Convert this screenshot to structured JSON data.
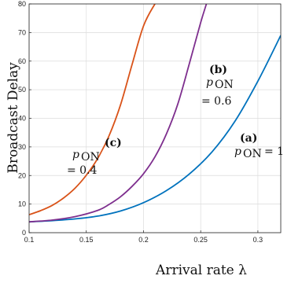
{
  "chart_data": {
    "type": "line",
    "xlabel": "Arrival rate λ",
    "ylabel": "Broadcast Delay",
    "xlim": [
      0.1,
      0.32
    ],
    "ylim": [
      0,
      80
    ],
    "xticks": [
      0.1,
      0.15,
      0.2,
      0.25,
      0.3
    ],
    "xtick_labels": [
      "0.1",
      "0.15",
      "0.2",
      "0.25",
      "0.3"
    ],
    "yticks": [
      0,
      10,
      20,
      30,
      40,
      50,
      60,
      70,
      80
    ],
    "ytick_labels": [
      "0",
      "10",
      "20",
      "30",
      "40",
      "50",
      "60",
      "70",
      "80"
    ],
    "grid": true,
    "series": [
      {
        "name": "(a) p_ON = 1",
        "color": "#0072BD",
        "x": [
          0.1,
          0.12,
          0.14,
          0.16,
          0.18,
          0.2,
          0.22,
          0.24,
          0.26,
          0.28,
          0.3,
          0.32
        ],
        "y": [
          3.8,
          4.2,
          4.8,
          5.8,
          7.6,
          10.5,
          14.7,
          20.5,
          28.3,
          39.0,
          53.0,
          69.0
        ]
      },
      {
        "name": "(b) p_ON = 0.6",
        "color": "#7E2F8E",
        "x": [
          0.1,
          0.12,
          0.14,
          0.16,
          0.17,
          0.18,
          0.19,
          0.2,
          0.21,
          0.22,
          0.23,
          0.24,
          0.25,
          0.255
        ],
        "y": [
          3.8,
          4.4,
          5.6,
          7.8,
          9.9,
          12.6,
          16.2,
          20.6,
          26.5,
          34.5,
          45.0,
          59.0,
          73.5,
          80.0
        ]
      },
      {
        "name": "(c) p_ON = 0.4",
        "color": "#D95319",
        "x": [
          0.1,
          0.11,
          0.12,
          0.13,
          0.14,
          0.15,
          0.16,
          0.17,
          0.18,
          0.19,
          0.2,
          0.21,
          0.214
        ],
        "y": [
          6.3,
          7.7,
          9.5,
          12.1,
          15.5,
          20.1,
          26.0,
          34.0,
          44.8,
          58.8,
          72.3,
          80.0,
          82.0
        ]
      }
    ],
    "annotations": {
      "a_label": "(a)",
      "a_text": "p",
      "a_sub": "ON",
      "a_eq": "= 1",
      "b_label": "(b)",
      "b_text": "p",
      "b_sub": "ON",
      "b_eq": "= 0.6",
      "c_label": "(c)",
      "c_text": "p",
      "c_sub": "ON",
      "c_eq": "= 0.4"
    }
  }
}
